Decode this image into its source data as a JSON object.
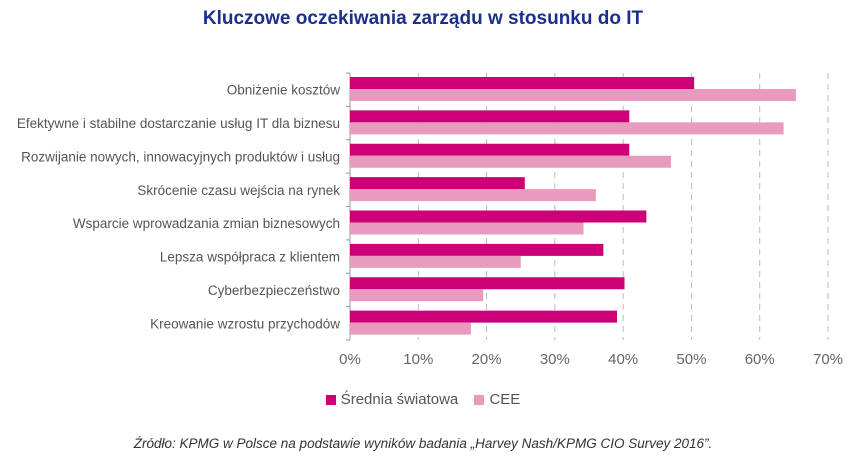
{
  "chart_data": {
    "type": "bar",
    "orientation": "horizontal",
    "title": "Kluczowe oczekiwania zarządu w stosunku do IT",
    "categories": [
      "Obniżenie kosztów",
      "Efektywne i stabilne dostarczanie usług IT dla biznesu",
      "Rozwijanie nowych, innowacyjnych produktów i usług",
      "Skrócenie czasu wejścia na rynek",
      "Wsparcie wprowadzania zmian biznesowych",
      "Lepsza współpraca z klientem",
      "Cyberbezpieczeństwo",
      "Kreowanie wzrostu przychodów"
    ],
    "series": [
      {
        "name": "Średnia światowa",
        "color": "#cc0077",
        "values": [
          50.4,
          40.9,
          40.9,
          25.6,
          43.4,
          37.1,
          40.2,
          39.1
        ]
      },
      {
        "name": "CEE",
        "color": "#e89abf",
        "values": [
          65.3,
          63.5,
          47.0,
          36.0,
          34.2,
          25.0,
          19.5,
          17.7
        ]
      }
    ],
    "xlim": [
      0,
      70
    ],
    "xticks": [
      "0%",
      "10%",
      "20%",
      "30%",
      "40%",
      "50%",
      "60%",
      "70%"
    ],
    "grid": "vertical dashed",
    "legend": "bottom",
    "xlabel": "",
    "ylabel": ""
  },
  "source": "Źródło: KPMG w Polsce na podstawie wyników badania „Harvey Nash/KPMG CIO Survey 2016”."
}
